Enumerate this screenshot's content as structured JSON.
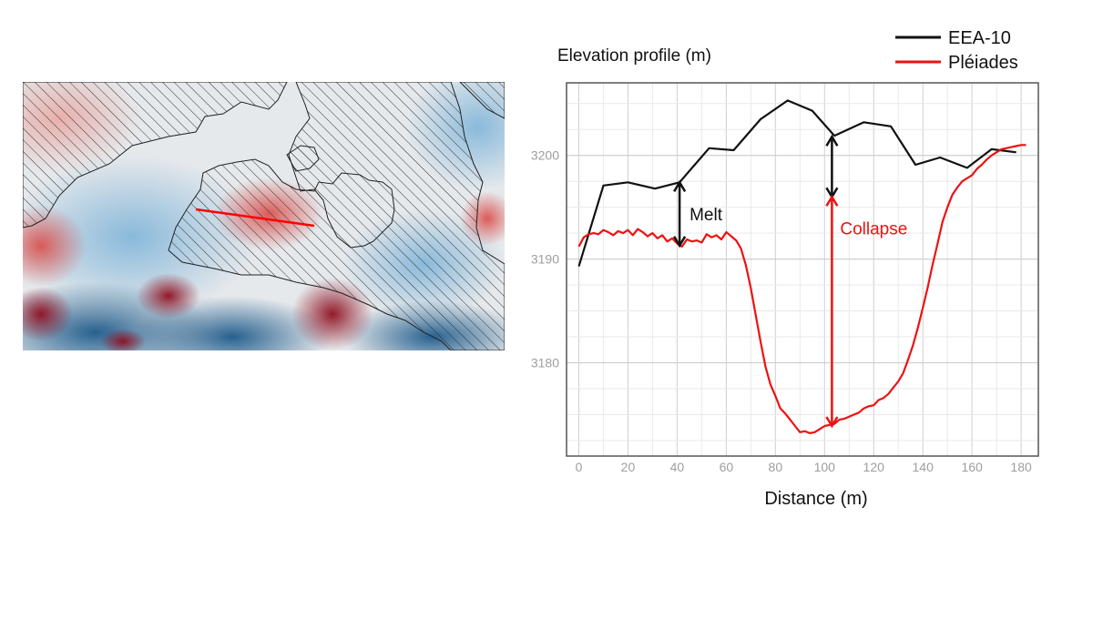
{
  "colors": {
    "eea10": "#111111",
    "pleiades": "#ee1111",
    "melt_arrow": "#111111",
    "collapse_arrow": "#ee1111",
    "panel_border": "#555555",
    "grid_major": "#cfcfcf",
    "grid_minor": "#e9e9e9",
    "tick_text": "#9e9e9e",
    "map_transect": "#ff0000"
  },
  "map": {
    "description_icon": "elevation-change-map",
    "transect": "red-line"
  },
  "chart_data": {
    "type": "line",
    "title": "Elevation profile (m)",
    "xlabel": "Distance (m)",
    "ylabel": "",
    "xlim": [
      -5,
      187
    ],
    "ylim": [
      3171,
      3207
    ],
    "xticks": [
      0,
      20,
      40,
      60,
      80,
      100,
      120,
      140,
      160,
      180
    ],
    "yticks": [
      3180,
      3190,
      3200
    ],
    "grid": true,
    "legend_position": "top-right",
    "series": [
      {
        "name": "EEA-10",
        "color": "#111111",
        "x": [
          0,
          10,
          20,
          31,
          41,
          53,
          63,
          74,
          85,
          95,
          104,
          116,
          127,
          137,
          147,
          158,
          168,
          178
        ],
        "y": [
          3189.3,
          3197.1,
          3197.4,
          3196.8,
          3197.4,
          3200.7,
          3200.5,
          3203.5,
          3205.3,
          3204.3,
          3201.9,
          3203.2,
          3202.8,
          3199.1,
          3199.8,
          3198.8,
          3200.6,
          3200.3
        ]
      },
      {
        "name": "Pléiades",
        "color": "#ee1111",
        "x": [
          0,
          2,
          4,
          6,
          8,
          10,
          12,
          14,
          16,
          18,
          20,
          22,
          24,
          26,
          28,
          30,
          32,
          34,
          36,
          38,
          40,
          42,
          44,
          46,
          48,
          50,
          52,
          54,
          56,
          58,
          60,
          62,
          64,
          66,
          68,
          70,
          72,
          74,
          76,
          78,
          80,
          82,
          84,
          86,
          88,
          90,
          92,
          94,
          96,
          98,
          100,
          102,
          104,
          106,
          108,
          110,
          112,
          114,
          116,
          118,
          120,
          122,
          124,
          126,
          128,
          130,
          132,
          134,
          136,
          138,
          140,
          142,
          144,
          146,
          148,
          150,
          152,
          154,
          156,
          158,
          160,
          162,
          164,
          166,
          168,
          170,
          172,
          174,
          176,
          178,
          180,
          182
        ],
        "y": [
          3191.2,
          3192.1,
          3192.4,
          3192.5,
          3192.4,
          3192.8,
          3192.6,
          3192.3,
          3192.7,
          3192.5,
          3192.8,
          3192.3,
          3192.9,
          3192.6,
          3192.2,
          3192.5,
          3192.0,
          3192.3,
          3191.7,
          3192.0,
          3191.5,
          3191.2,
          3191.9,
          3191.7,
          3191.8,
          3191.6,
          3192.4,
          3192.1,
          3192.3,
          3191.9,
          3192.6,
          3192.2,
          3191.8,
          3191.0,
          3189.4,
          3187.2,
          3184.6,
          3182.0,
          3179.6,
          3177.9,
          3176.8,
          3175.6,
          3175.1,
          3174.5,
          3173.9,
          3173.3,
          3173.4,
          3173.2,
          3173.3,
          3173.6,
          3173.9,
          3174.0,
          3174.1,
          3174.5,
          3174.6,
          3174.8,
          3175.0,
          3175.2,
          3175.6,
          3175.8,
          3175.9,
          3176.4,
          3176.6,
          3177.0,
          3177.6,
          3178.2,
          3179.0,
          3180.3,
          3181.7,
          3183.4,
          3185.3,
          3187.3,
          3189.5,
          3191.5,
          3193.6,
          3195.0,
          3196.2,
          3196.9,
          3197.5,
          3197.8,
          3198.1,
          3198.7,
          3199.1,
          3199.6,
          3200.0,
          3200.3,
          3200.6,
          3200.7,
          3200.8,
          3200.9,
          3201.0,
          3201.0
        ]
      }
    ],
    "annotations": [
      {
        "label": "Melt",
        "color": "#111111",
        "x": 41,
        "y_from": 3191.3,
        "y_to": 3197.4
      },
      {
        "label": "Collapse",
        "color": "#ee1111",
        "x": 103,
        "y_from": 3173.9,
        "y_to": 3196.0
      }
    ],
    "melt_gap": {
      "x": 103,
      "y_from": 3196.0,
      "y_to": 3201.8
    }
  }
}
